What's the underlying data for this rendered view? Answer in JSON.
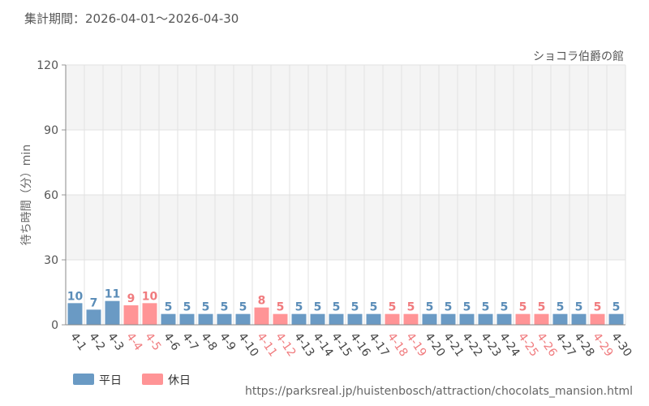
{
  "header": {
    "period_label": "集計期間：2026-04-01～2026-04-30"
  },
  "source_url": "https://parksreal.jp/huistenbosch/attraction/chocolats_mansion.html",
  "colors": {
    "weekday": "#6a9ac4",
    "holiday": "#ff9496",
    "weekday_text": "#5b8db8",
    "holiday_text": "#f07b7e",
    "band": "#f4f4f4",
    "grid": "#e2e2e2"
  },
  "chart_data": {
    "type": "bar",
    "title": "ショコラ伯爵の館",
    "ylabel": "待ち時間（分）min",
    "xlabel": "",
    "ylim": [
      0,
      120
    ],
    "yticks": [
      0,
      30,
      60,
      90,
      120
    ],
    "grid": true,
    "legend_position": "bottom-left",
    "legend": [
      {
        "name": "平日",
        "kind": "weekday"
      },
      {
        "name": "休日",
        "kind": "holiday"
      }
    ],
    "categories": [
      "4-1",
      "4-2",
      "4-3",
      "4-4",
      "4-5",
      "4-6",
      "4-7",
      "4-8",
      "4-9",
      "4-10",
      "4-11",
      "4-12",
      "4-13",
      "4-14",
      "4-15",
      "4-16",
      "4-17",
      "4-18",
      "4-19",
      "4-20",
      "4-21",
      "4-22",
      "4-23",
      "4-24",
      "4-25",
      "4-26",
      "4-27",
      "4-28",
      "4-29",
      "4-30"
    ],
    "values": [
      10,
      7,
      11,
      9,
      10,
      5,
      5,
      5,
      5,
      5,
      8,
      5,
      5,
      5,
      5,
      5,
      5,
      5,
      5,
      5,
      5,
      5,
      5,
      5,
      5,
      5,
      5,
      5,
      5,
      5
    ],
    "day_type": [
      "weekday",
      "weekday",
      "weekday",
      "holiday",
      "holiday",
      "weekday",
      "weekday",
      "weekday",
      "weekday",
      "weekday",
      "holiday",
      "holiday",
      "weekday",
      "weekday",
      "weekday",
      "weekday",
      "weekday",
      "holiday",
      "holiday",
      "weekday",
      "weekday",
      "weekday",
      "weekday",
      "weekday",
      "holiday",
      "holiday",
      "weekday",
      "weekday",
      "holiday",
      "weekday"
    ]
  }
}
